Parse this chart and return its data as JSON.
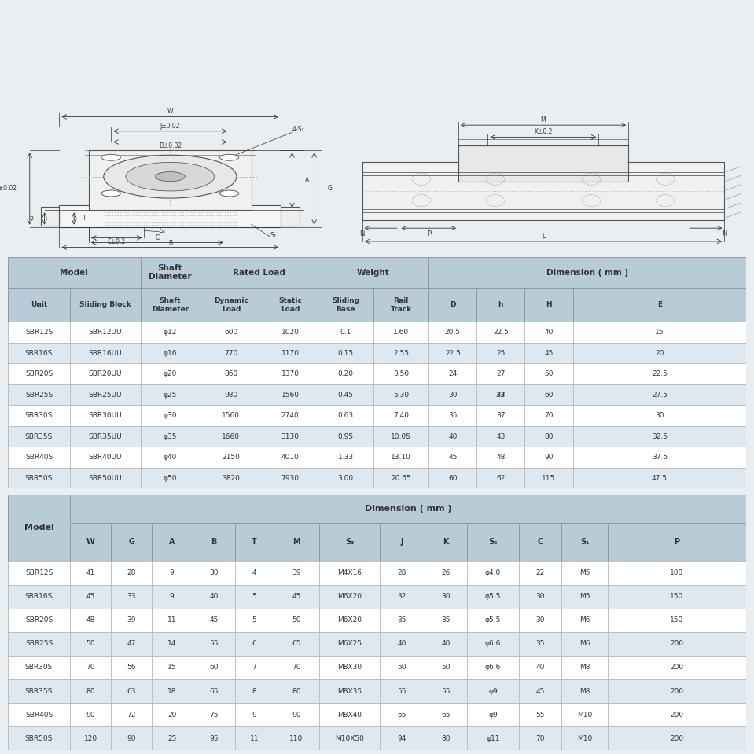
{
  "background_color": "#e8eef2",
  "table1_header_bg": "#b8ccd8",
  "table1_col_headers2": [
    "Unit",
    "Sliding Block",
    "Shaft\nDiameter",
    "Dynamic\nLoad",
    "Static\nLoad",
    "Sliding\nBase",
    "Rail\nTrack",
    "D",
    "h",
    "H",
    "E"
  ],
  "table1_data": [
    [
      "SBR12S",
      "SBR12UU",
      "φ12",
      "600",
      "1020",
      "0.1",
      "1.60",
      "20.5",
      "22.5",
      "40",
      "15"
    ],
    [
      "SBR16S",
      "SBR16UU",
      "φ16",
      "770",
      "1170",
      "0.15",
      "2.55",
      "22.5",
      "25",
      "45",
      "20"
    ],
    [
      "SBR20S",
      "SBR20UU",
      "φ20",
      "860",
      "1370",
      "0.20",
      "3.50",
      "24",
      "27",
      "50",
      "22.5"
    ],
    [
      "SBR25S",
      "SBR25UU",
      "φ25",
      "980",
      "1560",
      "0.45",
      "5.30",
      "30",
      "33",
      "60",
      "27.5"
    ],
    [
      "SBR30S",
      "SBR30UU",
      "φ30",
      "1560",
      "2740",
      "0.63",
      "7.40",
      "35",
      "37",
      "70",
      "30"
    ],
    [
      "SBR35S",
      "SBR35UU",
      "φ35",
      "1660",
      "3130",
      "0.95",
      "10.05",
      "40",
      "43",
      "80",
      "32.5"
    ],
    [
      "SBR40S",
      "SBR40UU",
      "φ40",
      "2150",
      "4010",
      "1.33",
      "13.10",
      "45",
      "48",
      "90",
      "37.5"
    ],
    [
      "SBR50S",
      "SBR50UU",
      "φ50",
      "3820",
      "7930",
      "3.00",
      "20.65",
      "60",
      "62",
      "115",
      "47.5"
    ]
  ],
  "table2_col_headers": [
    "Model",
    "W",
    "G",
    "A",
    "B",
    "T",
    "M",
    "S₃",
    "J",
    "K",
    "S₂",
    "C",
    "S₁",
    "P"
  ],
  "table2_data": [
    [
      "SBR12S",
      "41",
      "28",
      "9",
      "30",
      "4",
      "39",
      "M4X16",
      "28",
      "26",
      "φ4.0",
      "22",
      "M5",
      "100"
    ],
    [
      "SBR16S",
      "45",
      "33",
      "9",
      "40",
      "5",
      "45",
      "M6X20",
      "32",
      "30",
      "φ5.5",
      "30",
      "M5",
      "150"
    ],
    [
      "SBR20S",
      "48",
      "39",
      "11",
      "45",
      "5",
      "50",
      "M6X20",
      "35",
      "35",
      "φ5.5",
      "30",
      "M6",
      "150"
    ],
    [
      "SBR25S",
      "50",
      "47",
      "14",
      "55",
      "6",
      "65",
      "M6X25",
      "40",
      "40",
      "φ6.6",
      "35",
      "M6",
      "200"
    ],
    [
      "SBR30S",
      "70",
      "56",
      "15",
      "60",
      "7",
      "70",
      "M8X30",
      "50",
      "50",
      "φ6.6",
      "40",
      "M8",
      "200"
    ],
    [
      "SBR35S",
      "80",
      "63",
      "18",
      "65",
      "8",
      "80",
      "M8X35",
      "55",
      "55",
      "φ9",
      "45",
      "M8",
      "200"
    ],
    [
      "SBR40S",
      "90",
      "72",
      "20",
      "75",
      "9",
      "90",
      "M8X40",
      "65",
      "65",
      "φ9",
      "55",
      "M10",
      "200"
    ],
    [
      "SBR50S",
      "120",
      "90",
      "25",
      "95",
      "11",
      "110",
      "M10X50",
      "94",
      "80",
      "φ11",
      "70",
      "M10",
      "200"
    ]
  ]
}
